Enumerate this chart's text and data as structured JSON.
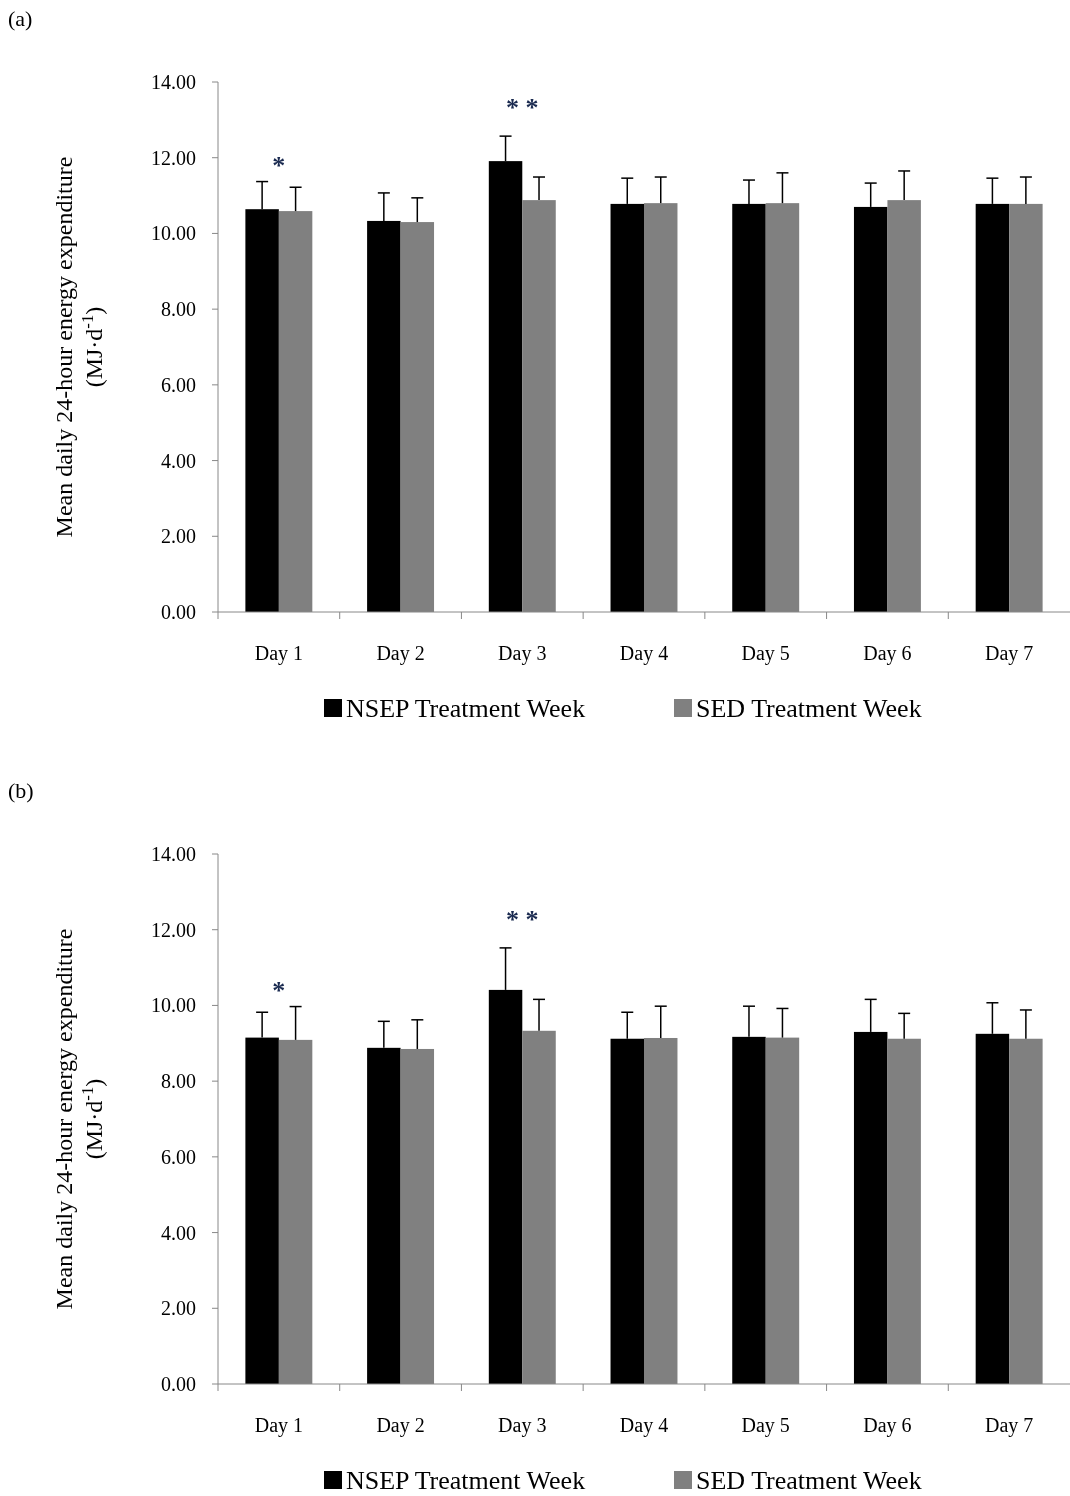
{
  "chart_data": [
    {
      "type": "bar",
      "title": "(a)",
      "ylabel": "Mean daily 24-hour energy expenditure (MJ·d$^{-1}$)",
      "categories": [
        "Day 1",
        "Day 2",
        "Day 3",
        "Day 4",
        "Day 5",
        "Day 6",
        "Day 7"
      ],
      "series": [
        {
          "name": "NSEP Treatment Week",
          "color": "#000000",
          "values": [
            10.64,
            10.33,
            11.91,
            10.78,
            10.78,
            10.7,
            10.78
          ],
          "errors": [
            [
              10.64,
              11.37
            ],
            [
              10.33,
              11.07
            ],
            [
              11.91,
              12.57
            ],
            [
              10.78,
              11.46
            ],
            [
              10.78,
              11.41
            ],
            [
              10.7,
              11.33
            ],
            [
              10.78,
              11.46
            ]
          ]
        },
        {
          "name": "SED Treatment Week",
          "color": "#808080",
          "values": [
            10.59,
            10.3,
            10.88,
            10.8,
            10.8,
            10.88,
            10.78
          ],
          "errors": [
            [
              10.59,
              11.22
            ],
            [
              10.3,
              10.94
            ],
            [
              10.88,
              11.49
            ],
            [
              10.8,
              11.49
            ],
            [
              10.8,
              11.6
            ],
            [
              10.88,
              11.65
            ],
            [
              10.78,
              11.49
            ]
          ]
        }
      ],
      "ylim": [
        0,
        14
      ],
      "yticks": [
        {
          "value": 0,
          "label": "0.00"
        },
        {
          "value": 2,
          "label": "2.00"
        },
        {
          "value": 4,
          "label": "4.00"
        },
        {
          "value": 6,
          "label": "6.00"
        },
        {
          "value": 8,
          "label": "8.00"
        },
        {
          "value": 10,
          "label": "10.00"
        },
        {
          "value": 12,
          "label": "12.00"
        },
        {
          "value": 14,
          "label": "14.00"
        }
      ],
      "annotations": [
        "*",
        "* *"
      ],
      "grid": false,
      "legend": "bottom"
    },
    {
      "type": "bar",
      "title": "(b)",
      "ylabel": "Mean daily 24-hour energy expenditure (MJ·d$^{-1}$)",
      "categories": [
        "Day 1",
        "Day 2",
        "Day 3",
        "Day 4",
        "Day 5",
        "Day 6",
        "Day 7"
      ],
      "series": [
        {
          "name": "NSEP Treatment Week",
          "color": "#000000",
          "values": [
            9.15,
            8.88,
            10.41,
            9.12,
            9.17,
            9.3,
            9.25
          ],
          "errors": [
            [
              9.15,
              9.82
            ],
            [
              8.88,
              9.58
            ],
            [
              10.41,
              11.52
            ],
            [
              9.12,
              9.82
            ],
            [
              9.17,
              9.98
            ],
            [
              9.3,
              10.16
            ],
            [
              9.25,
              10.07
            ]
          ]
        },
        {
          "name": "SED Treatment Week",
          "color": "#808080",
          "values": [
            9.09,
            8.85,
            9.33,
            9.14,
            9.15,
            9.12,
            9.12
          ],
          "errors": [
            [
              9.09,
              9.97
            ],
            [
              8.85,
              9.62
            ],
            [
              9.33,
              10.16
            ],
            [
              9.14,
              9.98
            ],
            [
              9.15,
              9.92
            ],
            [
              9.12,
              9.79
            ],
            [
              9.12,
              9.88
            ]
          ]
        }
      ],
      "ylim": [
        0,
        14
      ],
      "yticks": [
        {
          "value": 0,
          "label": "0.00"
        },
        {
          "value": 2,
          "label": "2.00"
        },
        {
          "value": 4,
          "label": "4.00"
        },
        {
          "value": 6,
          "label": "6.00"
        },
        {
          "value": 8,
          "label": "8.00"
        },
        {
          "value": 10,
          "label": "10.00"
        },
        {
          "value": 12,
          "label": "12.00"
        },
        {
          "value": 14,
          "label": "14.00"
        }
      ],
      "annotations": [
        "*",
        "* *"
      ],
      "grid": false,
      "legend": "bottom"
    }
  ]
}
